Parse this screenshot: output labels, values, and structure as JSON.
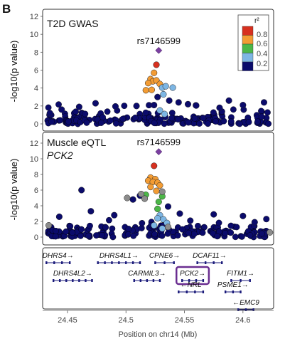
{
  "panel_label": "B",
  "chart_data": [
    {
      "type": "scatter",
      "title": "T2D GWAS",
      "ylabel": "-log10(p value)",
      "ylim": [
        0,
        12
      ],
      "yticks": [
        0,
        2,
        4,
        6,
        8,
        10,
        12
      ],
      "xlim": [
        24.43,
        24.625
      ],
      "lead_snp": {
        "label": "rs7146599",
        "x": 24.528,
        "y": 8.2
      },
      "legend": {
        "title": "r²",
        "tick_labels": [
          "0.8",
          "0.6",
          "0.4",
          "0.2"
        ],
        "colors": [
          "#d7301f",
          "#f39c34",
          "#4cb748",
          "#7db6e4",
          "#0b0b6b"
        ]
      },
      "points": [
        {
          "x": 24.526,
          "y": 6.6,
          "c": "r"
        },
        {
          "x": 24.524,
          "y": 5.7,
          "c": "o"
        },
        {
          "x": 24.521,
          "y": 5.0,
          "c": "o"
        },
        {
          "x": 24.523,
          "y": 4.75,
          "c": "o"
        },
        {
          "x": 24.526,
          "y": 4.85,
          "c": "o"
        },
        {
          "x": 24.519,
          "y": 4.55,
          "c": "o"
        },
        {
          "x": 24.529,
          "y": 4.45,
          "c": "o"
        },
        {
          "x": 24.531,
          "y": 4.05,
          "c": "b"
        },
        {
          "x": 24.522,
          "y": 3.8,
          "c": "o"
        },
        {
          "x": 24.517,
          "y": 3.75,
          "c": "o"
        },
        {
          "x": 24.534,
          "y": 4.2,
          "c": "b"
        },
        {
          "x": 24.54,
          "y": 4.05,
          "c": "b"
        },
        {
          "x": 24.532,
          "y": 3.3,
          "c": "b"
        },
        {
          "x": 24.527,
          "y": 3.0,
          "c": "n"
        },
        {
          "x": 24.537,
          "y": 2.6,
          "c": "n"
        },
        {
          "x": 24.529,
          "y": 1.5,
          "c": "b"
        },
        {
          "x": 24.533,
          "y": 1.1,
          "c": "b"
        },
        {
          "x": 24.524,
          "y": 2.1,
          "c": "n"
        },
        {
          "x": 24.545,
          "y": 2.4,
          "c": "n"
        },
        {
          "x": 24.553,
          "y": 2.2,
          "c": "n"
        },
        {
          "x": 24.56,
          "y": 2.05,
          "c": "n"
        },
        {
          "x": 24.509,
          "y": 2.0,
          "c": "n"
        },
        {
          "x": 24.491,
          "y": 1.95,
          "c": "n"
        },
        {
          "x": 24.474,
          "y": 2.3,
          "c": "n"
        },
        {
          "x": 24.6,
          "y": 2.1,
          "c": "n"
        },
        {
          "x": 24.618,
          "y": 2.4,
          "c": "n"
        },
        {
          "x": 24.46,
          "y": 1.9,
          "c": "n"
        },
        {
          "x": 24.58,
          "y": 1.8,
          "c": "n"
        },
        {
          "x": 24.445,
          "y": 1.6,
          "c": "n"
        },
        {
          "x": 24.435,
          "y": 1.2,
          "c": "n"
        },
        {
          "x": 24.588,
          "y": 2.6,
          "c": "n"
        }
      ]
    },
    {
      "type": "scatter",
      "title": "Muscle eQTL",
      "subtitle": "PCK2",
      "ylabel": "-log10(p value)",
      "ylim": [
        0,
        12
      ],
      "yticks": [
        0,
        2,
        4,
        6,
        8,
        10,
        12
      ],
      "xlim": [
        24.43,
        24.625
      ],
      "lead_snp": {
        "label": "rs7146599",
        "x": 24.528,
        "y": 10.9
      },
      "points": [
        {
          "x": 24.524,
          "y": 9.1,
          "c": "r"
        },
        {
          "x": 24.521,
          "y": 7.6,
          "c": "o"
        },
        {
          "x": 24.525,
          "y": 7.4,
          "c": "o"
        },
        {
          "x": 24.519,
          "y": 7.2,
          "c": "o"
        },
        {
          "x": 24.523,
          "y": 7.05,
          "c": "o"
        },
        {
          "x": 24.527,
          "y": 6.95,
          "c": "o"
        },
        {
          "x": 24.521,
          "y": 6.4,
          "c": "o"
        },
        {
          "x": 24.526,
          "y": 5.9,
          "c": "o"
        },
        {
          "x": 24.529,
          "y": 6.6,
          "c": "o"
        },
        {
          "x": 24.517,
          "y": 5.4,
          "c": "g"
        },
        {
          "x": 24.531,
          "y": 5.2,
          "c": "g"
        },
        {
          "x": 24.528,
          "y": 4.5,
          "c": "g"
        },
        {
          "x": 24.527,
          "y": 3.6,
          "c": "g"
        },
        {
          "x": 24.529,
          "y": 2.8,
          "c": "b"
        },
        {
          "x": 24.527,
          "y": 2.4,
          "c": "b"
        },
        {
          "x": 24.532,
          "y": 2.25,
          "c": "b"
        },
        {
          "x": 24.535,
          "y": 1.8,
          "c": "b"
        },
        {
          "x": 24.524,
          "y": 1.5,
          "c": "b"
        },
        {
          "x": 24.531,
          "y": 1.1,
          "c": "b"
        },
        {
          "x": 24.512,
          "y": 5.3,
          "c": "n"
        },
        {
          "x": 24.462,
          "y": 6.0,
          "c": "n"
        },
        {
          "x": 24.506,
          "y": 4.8,
          "c": "n"
        },
        {
          "x": 24.536,
          "y": 3.9,
          "c": "n"
        },
        {
          "x": 24.546,
          "y": 3.0,
          "c": "n"
        },
        {
          "x": 24.49,
          "y": 2.8,
          "c": "n"
        },
        {
          "x": 24.47,
          "y": 3.3,
          "c": "n"
        },
        {
          "x": 24.575,
          "y": 2.9,
          "c": "n"
        },
        {
          "x": 24.6,
          "y": 2.7,
          "c": "n"
        },
        {
          "x": 24.443,
          "y": 2.6,
          "c": "n"
        },
        {
          "x": 24.555,
          "y": 2.1,
          "c": "n"
        },
        {
          "x": 24.61,
          "y": 1.9,
          "c": "n"
        },
        {
          "x": 24.62,
          "y": 2.3,
          "c": "n"
        },
        {
          "x": 24.501,
          "y": 5.0,
          "c": "gray"
        },
        {
          "x": 24.513,
          "y": 5.5,
          "c": "gray"
        },
        {
          "x": 24.516,
          "y": 4.9,
          "c": "gray"
        },
        {
          "x": 24.531,
          "y": 5.8,
          "c": "gray"
        },
        {
          "x": 24.434,
          "y": 1.5,
          "c": "gray"
        },
        {
          "x": 24.536,
          "y": 1.3,
          "c": "gray"
        },
        {
          "x": 24.623,
          "y": 0.6,
          "c": "gray"
        }
      ]
    }
  ],
  "gene_track": {
    "genes": [
      {
        "name": "DHRS4",
        "start": 24.432,
        "end": 24.452,
        "strand": "+",
        "row": 0
      },
      {
        "name": "DHRS4L1",
        "start": 24.476,
        "end": 24.512,
        "strand": "+",
        "row": 0
      },
      {
        "name": "CPNE6",
        "start": 24.525,
        "end": 24.541,
        "strand": "+",
        "row": 0
      },
      {
        "name": "DCAF11",
        "start": 24.561,
        "end": 24.582,
        "strand": "+",
        "row": 0
      },
      {
        "name": "DHRS4L2",
        "start": 24.438,
        "end": 24.471,
        "strand": "+",
        "row": 1
      },
      {
        "name": "CARMIL3",
        "start": 24.507,
        "end": 24.529,
        "strand": "+",
        "row": 1
      },
      {
        "name": "PCK2",
        "start": 24.548,
        "end": 24.566,
        "strand": "+",
        "row": 1,
        "highlight": true
      },
      {
        "name": "FITM1",
        "start": 24.59,
        "end": 24.606,
        "strand": "+",
        "row": 1
      },
      {
        "name": "NRL",
        "start": 24.545,
        "end": 24.566,
        "strand": "-",
        "row": 2
      },
      {
        "name": "PSME1",
        "start": 24.585,
        "end": 24.598,
        "strand": "+",
        "row": 2
      },
      {
        "name": "EMC9",
        "start": 24.596,
        "end": 24.609,
        "strand": "-",
        "row": 3
      }
    ],
    "highlight_color": "#6a2d90"
  },
  "x_axis": {
    "label": "Position on chr14 (Mb)",
    "ticks": [
      "24.45",
      "24.5",
      "24.55",
      "24.6"
    ],
    "tick_values": [
      24.45,
      24.5,
      24.55,
      24.6
    ]
  },
  "colors": {
    "r": "#d7301f",
    "o": "#f39c34",
    "g": "#4cb748",
    "b": "#7db6e4",
    "n": "#0b0b6b",
    "gray": "#8c8c8c",
    "lead": "#7b3fa1"
  }
}
